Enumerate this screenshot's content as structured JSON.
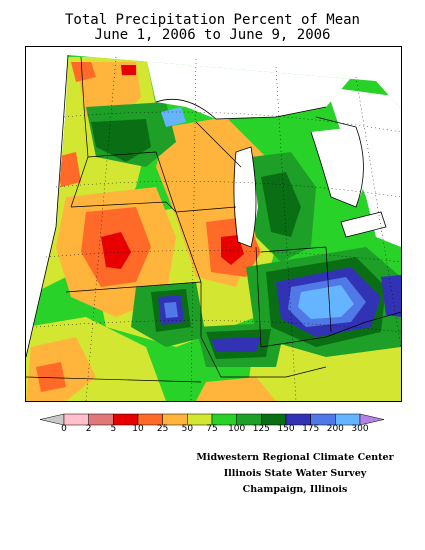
{
  "title": {
    "line1": "Total Precipitation Percent of Mean",
    "line2": "June 1, 2006 to June 9, 2006"
  },
  "legend": {
    "labels": [
      "0",
      "2",
      "5",
      "10",
      "25",
      "50",
      "75",
      "100",
      "125",
      "150",
      "175",
      "200",
      "300"
    ],
    "colors": [
      "#c8c8c8",
      "#ffc0cb",
      "#e07878",
      "#e80000",
      "#ff6a28",
      "#ffb43c",
      "#d2e632",
      "#28d228",
      "#1ea028",
      "#0a6e14",
      "#3232b4",
      "#5078e6",
      "#64b4ff",
      "#b482e6"
    ]
  },
  "credits": {
    "line1": "Midwestern Regional Climate Center",
    "line2": "Illinois State Water Survey",
    "line3": "Champaign, Illinois"
  },
  "map": {
    "region": "Midwest United States",
    "variable": "Total Precipitation Percent of Mean"
  }
}
